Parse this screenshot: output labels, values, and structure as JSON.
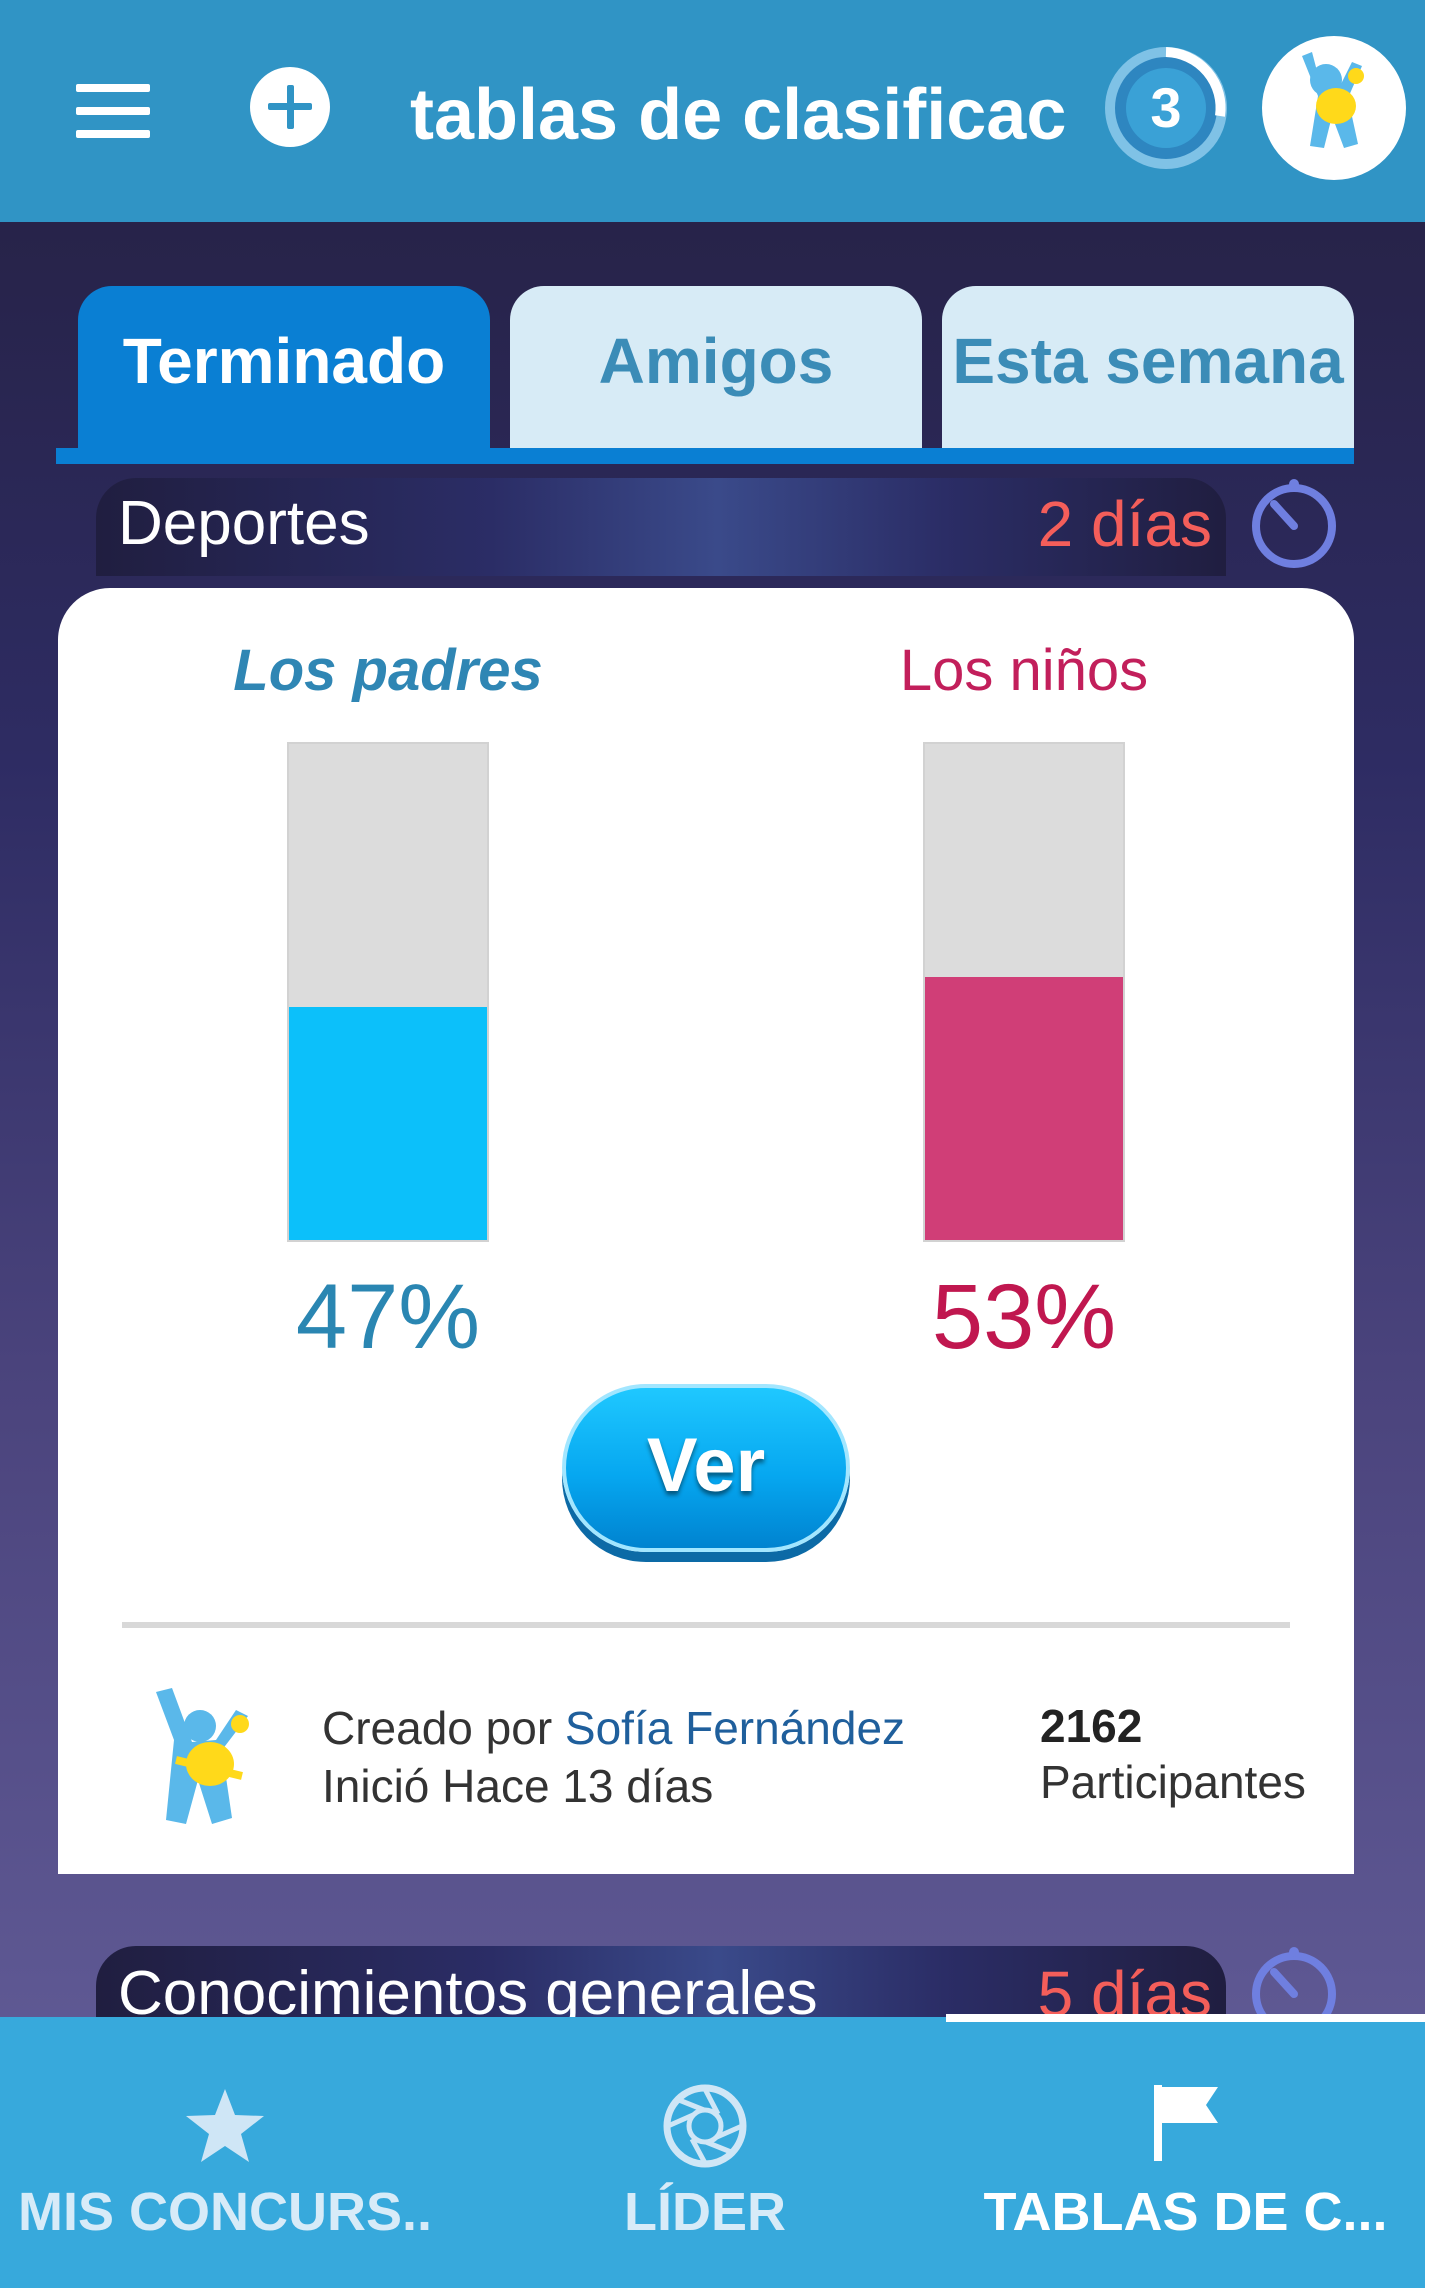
{
  "app": {
    "title": "tablas de clasificac",
    "notification_count": "3"
  },
  "tabs": [
    {
      "label": "Terminado",
      "active": true
    },
    {
      "label": "Amigos",
      "active": false
    },
    {
      "label": "Esta semana",
      "active": false
    }
  ],
  "contests": [
    {
      "category": "Deportes",
      "time_left": "2 días",
      "team_a": {
        "name": "Los padres",
        "percent": 47,
        "percent_label": "47%",
        "color": "#0cc0fa"
      },
      "team_b": {
        "name": "Los niños",
        "percent": 53,
        "percent_label": "53%",
        "color": "#d03e77"
      },
      "action_label": "Ver",
      "created_by_prefix": "Creado por",
      "creator": "Sofía Fernández",
      "started": "Inició Hace 13 días",
      "participants_count": "2162",
      "participants_label": "Participantes"
    },
    {
      "category": "Conocimientos generales",
      "time_left": "5 días"
    }
  ],
  "bottom_nav": [
    {
      "label": "MIS CONCURS..",
      "icon": "star-icon",
      "active": false
    },
    {
      "label": "LÍDER",
      "icon": "aperture-icon",
      "active": false
    },
    {
      "label": "TABLAS DE C...",
      "icon": "flag-icon",
      "active": true
    }
  ],
  "colors": {
    "header": "#3094c5",
    "tab_active": "#0a7fd3",
    "tab_inactive": "#d7ebf6",
    "days": "#f45e5a",
    "bottom_nav": "#37a9dc"
  }
}
